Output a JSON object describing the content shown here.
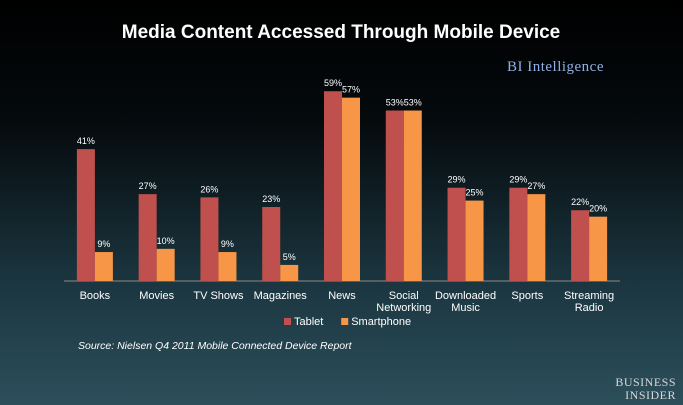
{
  "chart_data": {
    "type": "bar",
    "title": "Media Content Accessed Through Mobile Device",
    "categories": [
      [
        "Books"
      ],
      [
        "Movies"
      ],
      [
        "TV Shows"
      ],
      [
        "Magazines"
      ],
      [
        "News"
      ],
      [
        "Social",
        "Networking"
      ],
      [
        "Downloaded",
        "Music"
      ],
      [
        "Sports"
      ],
      [
        "Streaming",
        "Radio"
      ]
    ],
    "series": [
      {
        "name": "Tablet",
        "color": "#c0504d",
        "values": [
          41,
          27,
          26,
          23,
          59,
          53,
          29,
          29,
          22
        ]
      },
      {
        "name": "Smartphone",
        "color": "#f79646",
        "values": [
          9,
          10,
          9,
          5,
          57,
          53,
          25,
          27,
          20
        ]
      }
    ],
    "value_suffix": "%",
    "ylim": [
      0,
      60
    ],
    "grid": false,
    "legend_position": "bottom"
  },
  "brand_label": "BI Intelligence",
  "source_text": "Source: Nielsen Q4 2011 Mobile Connected Device Report",
  "logo_lines": [
    "BUSINESS",
    "INSIDER"
  ]
}
